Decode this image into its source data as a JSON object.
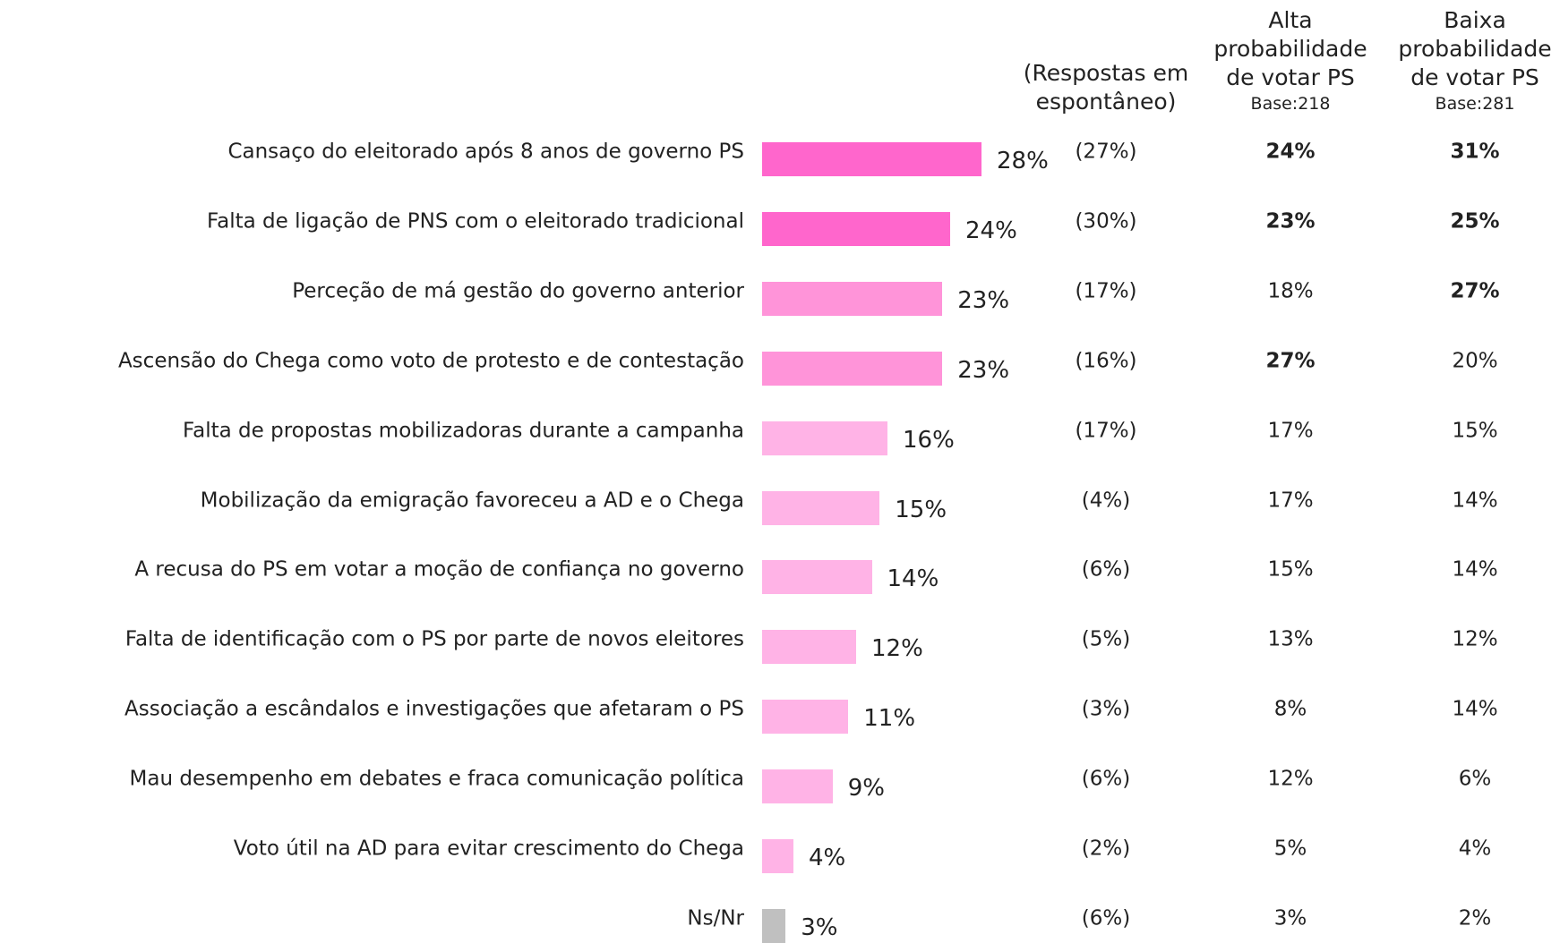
{
  "chart_data": {
    "type": "bar",
    "orientation": "horizontal",
    "categories": [
      "Cansaço do eleitorado após 8 anos de governo PS",
      "Falta de ligação de PNS com o eleitorado tradicional",
      "Perceção de má gestão do governo anterior",
      "Ascensão do Chega como voto de protesto e de contestação",
      "Falta de propostas mobilizadoras durante a campanha",
      "Mobilização da emigração favoreceu a AD e o Chega",
      "A recusa do PS em votar a moção de confiança no governo",
      "Falta de identificação com o PS por parte de novos eleitores",
      "Associação a escândalos e investigações que afetaram o PS",
      "Mau desempenho em debates e fraca comunicação política",
      "Voto útil na AD para evitar crescimento do Chega",
      "Ns/Nr"
    ],
    "values": [
      28,
      24,
      23,
      23,
      16,
      15,
      14,
      12,
      11,
      9,
      4,
      3
    ],
    "value_labels": [
      "28%",
      "24%",
      "23%",
      "23%",
      "16%",
      "15%",
      "14%",
      "12%",
      "11%",
      "9%",
      "4%",
      "3%"
    ],
    "colors": [
      "#ff66cc",
      "#ff66cc",
      "#ff94d9",
      "#ff94d9",
      "#ffb3e6",
      "#ffb3e6",
      "#ffb3e6",
      "#ffb3e6",
      "#ffb3e6",
      "#ffb3e6",
      "#ffb3e6",
      "#c0c0c0"
    ],
    "columns": [
      {
        "name": "(Respostas em espontâneo)",
        "values": [
          27,
          30,
          17,
          16,
          17,
          4,
          6,
          5,
          3,
          6,
          2,
          6
        ],
        "value_labels": [
          "(27%)",
          "(30%)",
          "(17%)",
          "(16%)",
          "(17%)",
          "(4%)",
          "(6%)",
          "(5%)",
          "(3%)",
          "(6%)",
          "(2%)",
          "(6%)"
        ],
        "bold": [
          false,
          false,
          false,
          false,
          false,
          false,
          false,
          false,
          false,
          false,
          false,
          false
        ]
      },
      {
        "name": "Alta probabilidade de votar PS",
        "base": "Base:218",
        "values": [
          24,
          23,
          18,
          27,
          17,
          17,
          15,
          13,
          8,
          12,
          5,
          3
        ],
        "value_labels": [
          "24%",
          "23%",
          "18%",
          "27%",
          "17%",
          "17%",
          "15%",
          "13%",
          "8%",
          "12%",
          "5%",
          "3%"
        ],
        "bold": [
          true,
          true,
          false,
          true,
          false,
          false,
          false,
          false,
          false,
          false,
          false,
          false
        ]
      },
      {
        "name": "Baixa probabilidade de votar PS",
        "base": "Base:281",
        "values": [
          31,
          25,
          27,
          20,
          15,
          14,
          14,
          12,
          14,
          6,
          4,
          2
        ],
        "value_labels": [
          "31%",
          "25%",
          "27%",
          "20%",
          "15%",
          "14%",
          "14%",
          "12%",
          "14%",
          "6%",
          "4%",
          "2%"
        ],
        "bold": [
          true,
          true,
          true,
          false,
          false,
          false,
          false,
          false,
          false,
          false,
          false,
          false
        ]
      }
    ]
  }
}
